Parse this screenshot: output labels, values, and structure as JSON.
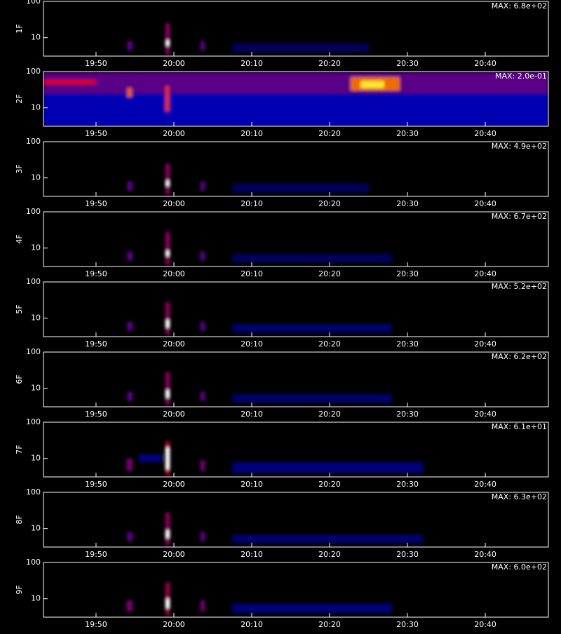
{
  "colormap": [
    "#000000",
    "#0000e0",
    "#e00000",
    "#ffe000",
    "#ffffff"
  ],
  "chart_data": [
    {
      "type": "heatmap",
      "label": "1F",
      "annotation": "MAX: 6.8e+02",
      "log_y": true,
      "xlim": [
        43.25,
        108.1
      ],
      "ylim": [
        3.1,
        100
      ],
      "yticks": [
        10,
        100
      ],
      "xticks": [
        {
          "value": 50,
          "label": "19:50"
        },
        {
          "value": 60,
          "label": "20:00"
        },
        {
          "value": 70,
          "label": "20:10"
        },
        {
          "value": 80,
          "label": "20:20"
        },
        {
          "value": 90,
          "label": "20:30"
        },
        {
          "value": 100,
          "label": "20:40"
        }
      ],
      "patches": [
        {
          "x0": 67.5,
          "x1": 85,
          "y0": 4,
          "y1": 7,
          "level": 0.1
        },
        {
          "x0": 54.0,
          "x1": 54.7,
          "y0": 4.5,
          "y1": 8,
          "level": 0.35
        },
        {
          "x0": 58.9,
          "x1": 59.5,
          "y0": 3.5,
          "y1": 25,
          "level": 0.4
        },
        {
          "x0": 58.9,
          "x1": 59.5,
          "y0": 6,
          "y1": 8.5,
          "level": 1
        },
        {
          "x0": 63.4,
          "x1": 64.0,
          "y0": 4.5,
          "y1": 8,
          "level": 0.35
        }
      ]
    },
    {
      "type": "heatmap",
      "label": "2F",
      "annotation": "MAX: 2.0e-01",
      "log_y": true,
      "xlim": [
        43.25,
        108.1
      ],
      "ylim": [
        3.1,
        100
      ],
      "yticks": [
        10,
        100
      ],
      "xticks": [
        {
          "value": 50,
          "label": "19:50"
        },
        {
          "value": 60,
          "label": "20:00"
        },
        {
          "value": 70,
          "label": "20:10"
        },
        {
          "value": 80,
          "label": "20:20"
        },
        {
          "value": 90,
          "label": "20:30"
        },
        {
          "value": 100,
          "label": "20:40"
        }
      ],
      "patches": [
        {
          "x0": 43.25,
          "x1": 108.1,
          "y0": 3.1,
          "y1": 25,
          "level": 0.2
        },
        {
          "x0": 43.25,
          "x1": 108.1,
          "y0": 25,
          "y1": 95,
          "level": 0.35
        },
        {
          "x0": 43.25,
          "x1": 50,
          "y0": 45,
          "y1": 60,
          "level": 0.5
        },
        {
          "x0": 82.7,
          "x1": 89,
          "y0": 30,
          "y1": 70,
          "level": 0.62
        },
        {
          "x0": 84,
          "x1": 87,
          "y0": 35,
          "y1": 55,
          "level": 0.8
        },
        {
          "x0": 54.0,
          "x1": 54.6,
          "y0": 20,
          "y1": 35,
          "level": 0.6
        },
        {
          "x0": 58.9,
          "x1": 59.4,
          "y0": 8,
          "y1": 40,
          "level": 0.55
        }
      ]
    },
    {
      "type": "heatmap",
      "label": "3F",
      "annotation": "MAX: 4.9e+02",
      "log_y": true,
      "xlim": [
        43.25,
        108.1
      ],
      "ylim": [
        3.1,
        100
      ],
      "yticks": [
        10,
        100
      ],
      "xticks": [
        {
          "value": 50,
          "label": "19:50"
        },
        {
          "value": 60,
          "label": "20:00"
        },
        {
          "value": 70,
          "label": "20:10"
        },
        {
          "value": 80,
          "label": "20:20"
        },
        {
          "value": 90,
          "label": "20:30"
        },
        {
          "value": 100,
          "label": "20:40"
        }
      ],
      "patches": [
        {
          "x0": 67.5,
          "x1": 85,
          "y0": 4,
          "y1": 7,
          "level": 0.1
        },
        {
          "x0": 54.0,
          "x1": 54.7,
          "y0": 4.5,
          "y1": 8,
          "level": 0.35
        },
        {
          "x0": 58.9,
          "x1": 59.5,
          "y0": 3.5,
          "y1": 25,
          "level": 0.4
        },
        {
          "x0": 58.9,
          "x1": 59.5,
          "y0": 6,
          "y1": 8.5,
          "level": 1
        },
        {
          "x0": 63.4,
          "x1": 64.0,
          "y0": 4.5,
          "y1": 8,
          "level": 0.35
        }
      ]
    },
    {
      "type": "heatmap",
      "label": "4F",
      "annotation": "MAX: 6.7e+02",
      "log_y": true,
      "xlim": [
        43.25,
        108.1
      ],
      "ylim": [
        3.1,
        100
      ],
      "yticks": [
        10,
        100
      ],
      "xticks": [
        {
          "value": 50,
          "label": "19:50"
        },
        {
          "value": 60,
          "label": "20:00"
        },
        {
          "value": 70,
          "label": "20:10"
        },
        {
          "value": 80,
          "label": "20:20"
        },
        {
          "value": 90,
          "label": "20:30"
        },
        {
          "value": 100,
          "label": "20:40"
        }
      ],
      "patches": [
        {
          "x0": 67.5,
          "x1": 88,
          "y0": 4,
          "y1": 7,
          "level": 0.1
        },
        {
          "x0": 54.0,
          "x1": 54.7,
          "y0": 4.5,
          "y1": 8,
          "level": 0.35
        },
        {
          "x0": 58.9,
          "x1": 59.5,
          "y0": 3.5,
          "y1": 28,
          "level": 0.4
        },
        {
          "x0": 58.9,
          "x1": 59.5,
          "y0": 6,
          "y1": 8.5,
          "level": 1
        },
        {
          "x0": 63.4,
          "x1": 64.0,
          "y0": 4.5,
          "y1": 8,
          "level": 0.35
        }
      ]
    },
    {
      "type": "heatmap",
      "label": "5F",
      "annotation": "MAX: 5.2e+02",
      "log_y": true,
      "xlim": [
        43.25,
        108.1
      ],
      "ylim": [
        3.1,
        100
      ],
      "yticks": [
        10,
        100
      ],
      "xticks": [
        {
          "value": 50,
          "label": "19:50"
        },
        {
          "value": 60,
          "label": "20:00"
        },
        {
          "value": 70,
          "label": "20:10"
        },
        {
          "value": 80,
          "label": "20:20"
        },
        {
          "value": 90,
          "label": "20:30"
        },
        {
          "value": 100,
          "label": "20:40"
        }
      ],
      "patches": [
        {
          "x0": 67.5,
          "x1": 88,
          "y0": 4,
          "y1": 7,
          "level": 0.12
        },
        {
          "x0": 54.0,
          "x1": 54.7,
          "y0": 4.5,
          "y1": 8,
          "level": 0.35
        },
        {
          "x0": 58.9,
          "x1": 59.5,
          "y0": 3.5,
          "y1": 28,
          "level": 0.4
        },
        {
          "x0": 58.9,
          "x1": 59.5,
          "y0": 5.5,
          "y1": 9,
          "level": 1
        },
        {
          "x0": 63.4,
          "x1": 64.0,
          "y0": 4.5,
          "y1": 8,
          "level": 0.35
        }
      ]
    },
    {
      "type": "heatmap",
      "label": "6F",
      "annotation": "MAX: 6.2e+02",
      "log_y": true,
      "xlim": [
        43.25,
        108.1
      ],
      "ylim": [
        3.1,
        100
      ],
      "yticks": [
        10,
        100
      ],
      "xticks": [
        {
          "value": 50,
          "label": "19:50"
        },
        {
          "value": 60,
          "label": "20:00"
        },
        {
          "value": 70,
          "label": "20:10"
        },
        {
          "value": 80,
          "label": "20:20"
        },
        {
          "value": 90,
          "label": "20:30"
        },
        {
          "value": 100,
          "label": "20:40"
        }
      ],
      "patches": [
        {
          "x0": 67.5,
          "x1": 88,
          "y0": 4,
          "y1": 7,
          "level": 0.12
        },
        {
          "x0": 54.0,
          "x1": 54.7,
          "y0": 4.5,
          "y1": 8,
          "level": 0.35
        },
        {
          "x0": 58.9,
          "x1": 59.5,
          "y0": 3.5,
          "y1": 28,
          "level": 0.4
        },
        {
          "x0": 58.9,
          "x1": 59.5,
          "y0": 5.5,
          "y1": 9,
          "level": 1
        },
        {
          "x0": 63.4,
          "x1": 64.0,
          "y0": 4.5,
          "y1": 8,
          "level": 0.35
        }
      ]
    },
    {
      "type": "heatmap",
      "label": "7F",
      "annotation": "MAX: 6.1e+01",
      "log_y": true,
      "xlim": [
        43.25,
        108.1
      ],
      "ylim": [
        3.1,
        100
      ],
      "yticks": [
        10,
        100
      ],
      "xticks": [
        {
          "value": 50,
          "label": "19:50"
        },
        {
          "value": 60,
          "label": "20:00"
        },
        {
          "value": 70,
          "label": "20:10"
        },
        {
          "value": 80,
          "label": "20:20"
        },
        {
          "value": 90,
          "label": "20:30"
        },
        {
          "value": 100,
          "label": "20:40"
        }
      ],
      "patches": [
        {
          "x0": 67.5,
          "x1": 92,
          "y0": 4,
          "y1": 8,
          "level": 0.14
        },
        {
          "x0": 55.5,
          "x1": 58.5,
          "y0": 8,
          "y1": 13,
          "level": 0.15
        },
        {
          "x0": 53.9,
          "x1": 54.7,
          "y0": 4.5,
          "y1": 10,
          "level": 0.38
        },
        {
          "x0": 58.9,
          "x1": 59.5,
          "y0": 3.5,
          "y1": 30,
          "level": 0.45
        },
        {
          "x0": 58.9,
          "x1": 59.5,
          "y0": 5,
          "y1": 20,
          "level": 1
        },
        {
          "x0": 63.4,
          "x1": 64.0,
          "y0": 4.5,
          "y1": 9,
          "level": 0.38
        }
      ]
    },
    {
      "type": "heatmap",
      "label": "8F",
      "annotation": "MAX: 6.3e+02",
      "log_y": true,
      "xlim": [
        43.25,
        108.1
      ],
      "ylim": [
        3.1,
        100
      ],
      "yticks": [
        10,
        100
      ],
      "xticks": [
        {
          "value": 50,
          "label": "19:50"
        },
        {
          "value": 60,
          "label": "20:00"
        },
        {
          "value": 70,
          "label": "20:10"
        },
        {
          "value": 80,
          "label": "20:20"
        },
        {
          "value": 90,
          "label": "20:30"
        },
        {
          "value": 100,
          "label": "20:40"
        }
      ],
      "patches": [
        {
          "x0": 67.5,
          "x1": 92,
          "y0": 4,
          "y1": 7,
          "level": 0.12
        },
        {
          "x0": 54.0,
          "x1": 54.7,
          "y0": 4.5,
          "y1": 8,
          "level": 0.35
        },
        {
          "x0": 58.9,
          "x1": 59.5,
          "y0": 3.5,
          "y1": 28,
          "level": 0.4
        },
        {
          "x0": 58.9,
          "x1": 59.5,
          "y0": 5.5,
          "y1": 9,
          "level": 1
        },
        {
          "x0": 63.4,
          "x1": 64.0,
          "y0": 4.5,
          "y1": 8,
          "level": 0.35
        }
      ]
    },
    {
      "type": "heatmap",
      "label": "9F",
      "annotation": "MAX: 6.0e+02",
      "log_y": true,
      "xlim": [
        43.25,
        108.1
      ],
      "ylim": [
        3.1,
        100
      ],
      "yticks": [
        10,
        100
      ],
      "xticks": [
        {
          "value": 50,
          "label": "19:50"
        },
        {
          "value": 60,
          "label": "20:00"
        },
        {
          "value": 70,
          "label": "20:10"
        },
        {
          "value": 80,
          "label": "20:20"
        },
        {
          "value": 90,
          "label": "20:30"
        },
        {
          "value": 100,
          "label": "20:40"
        }
      ],
      "patches": [
        {
          "x0": 67.5,
          "x1": 88,
          "y0": 4,
          "y1": 7.5,
          "level": 0.13
        },
        {
          "x0": 53.9,
          "x1": 54.7,
          "y0": 4.5,
          "y1": 9,
          "level": 0.38
        },
        {
          "x0": 58.9,
          "x1": 59.5,
          "y0": 3.5,
          "y1": 28,
          "level": 0.42
        },
        {
          "x0": 58.9,
          "x1": 59.5,
          "y0": 5.5,
          "y1": 10,
          "level": 1
        },
        {
          "x0": 63.4,
          "x1": 64.0,
          "y0": 4.5,
          "y1": 9,
          "level": 0.38
        }
      ]
    }
  ]
}
